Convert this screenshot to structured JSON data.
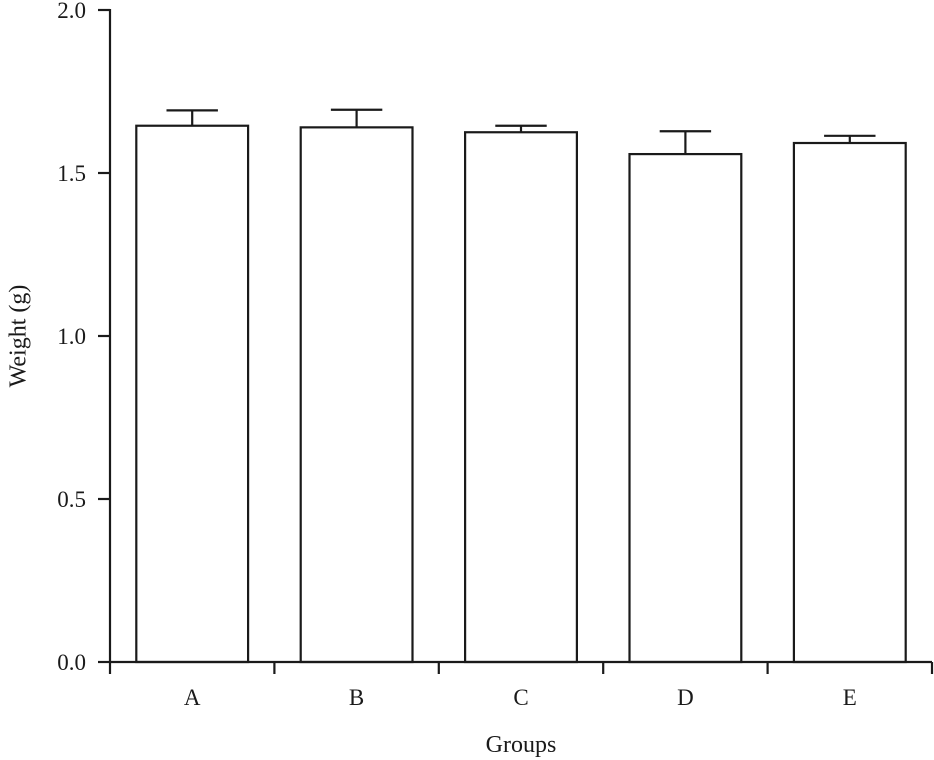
{
  "chart_data": {
    "type": "bar",
    "title": "",
    "xlabel": "Groups",
    "ylabel": "Weight (g)",
    "categories": [
      "A",
      "B",
      "C",
      "D",
      "E"
    ],
    "values": [
      1.645,
      1.64,
      1.625,
      1.558,
      1.592
    ],
    "error_plus": [
      0.047,
      0.054,
      0.02,
      0.07,
      0.022
    ],
    "ylim": [
      0,
      2.0
    ],
    "yticks": [
      0.0,
      0.5,
      1.0,
      1.5,
      2.0
    ],
    "ytick_labels": [
      "0.0",
      "0.5",
      "1.0",
      "1.5",
      "2.0"
    ],
    "grid": false,
    "bar_fill": "#ffffff",
    "line_color": "#1a1a1a"
  }
}
